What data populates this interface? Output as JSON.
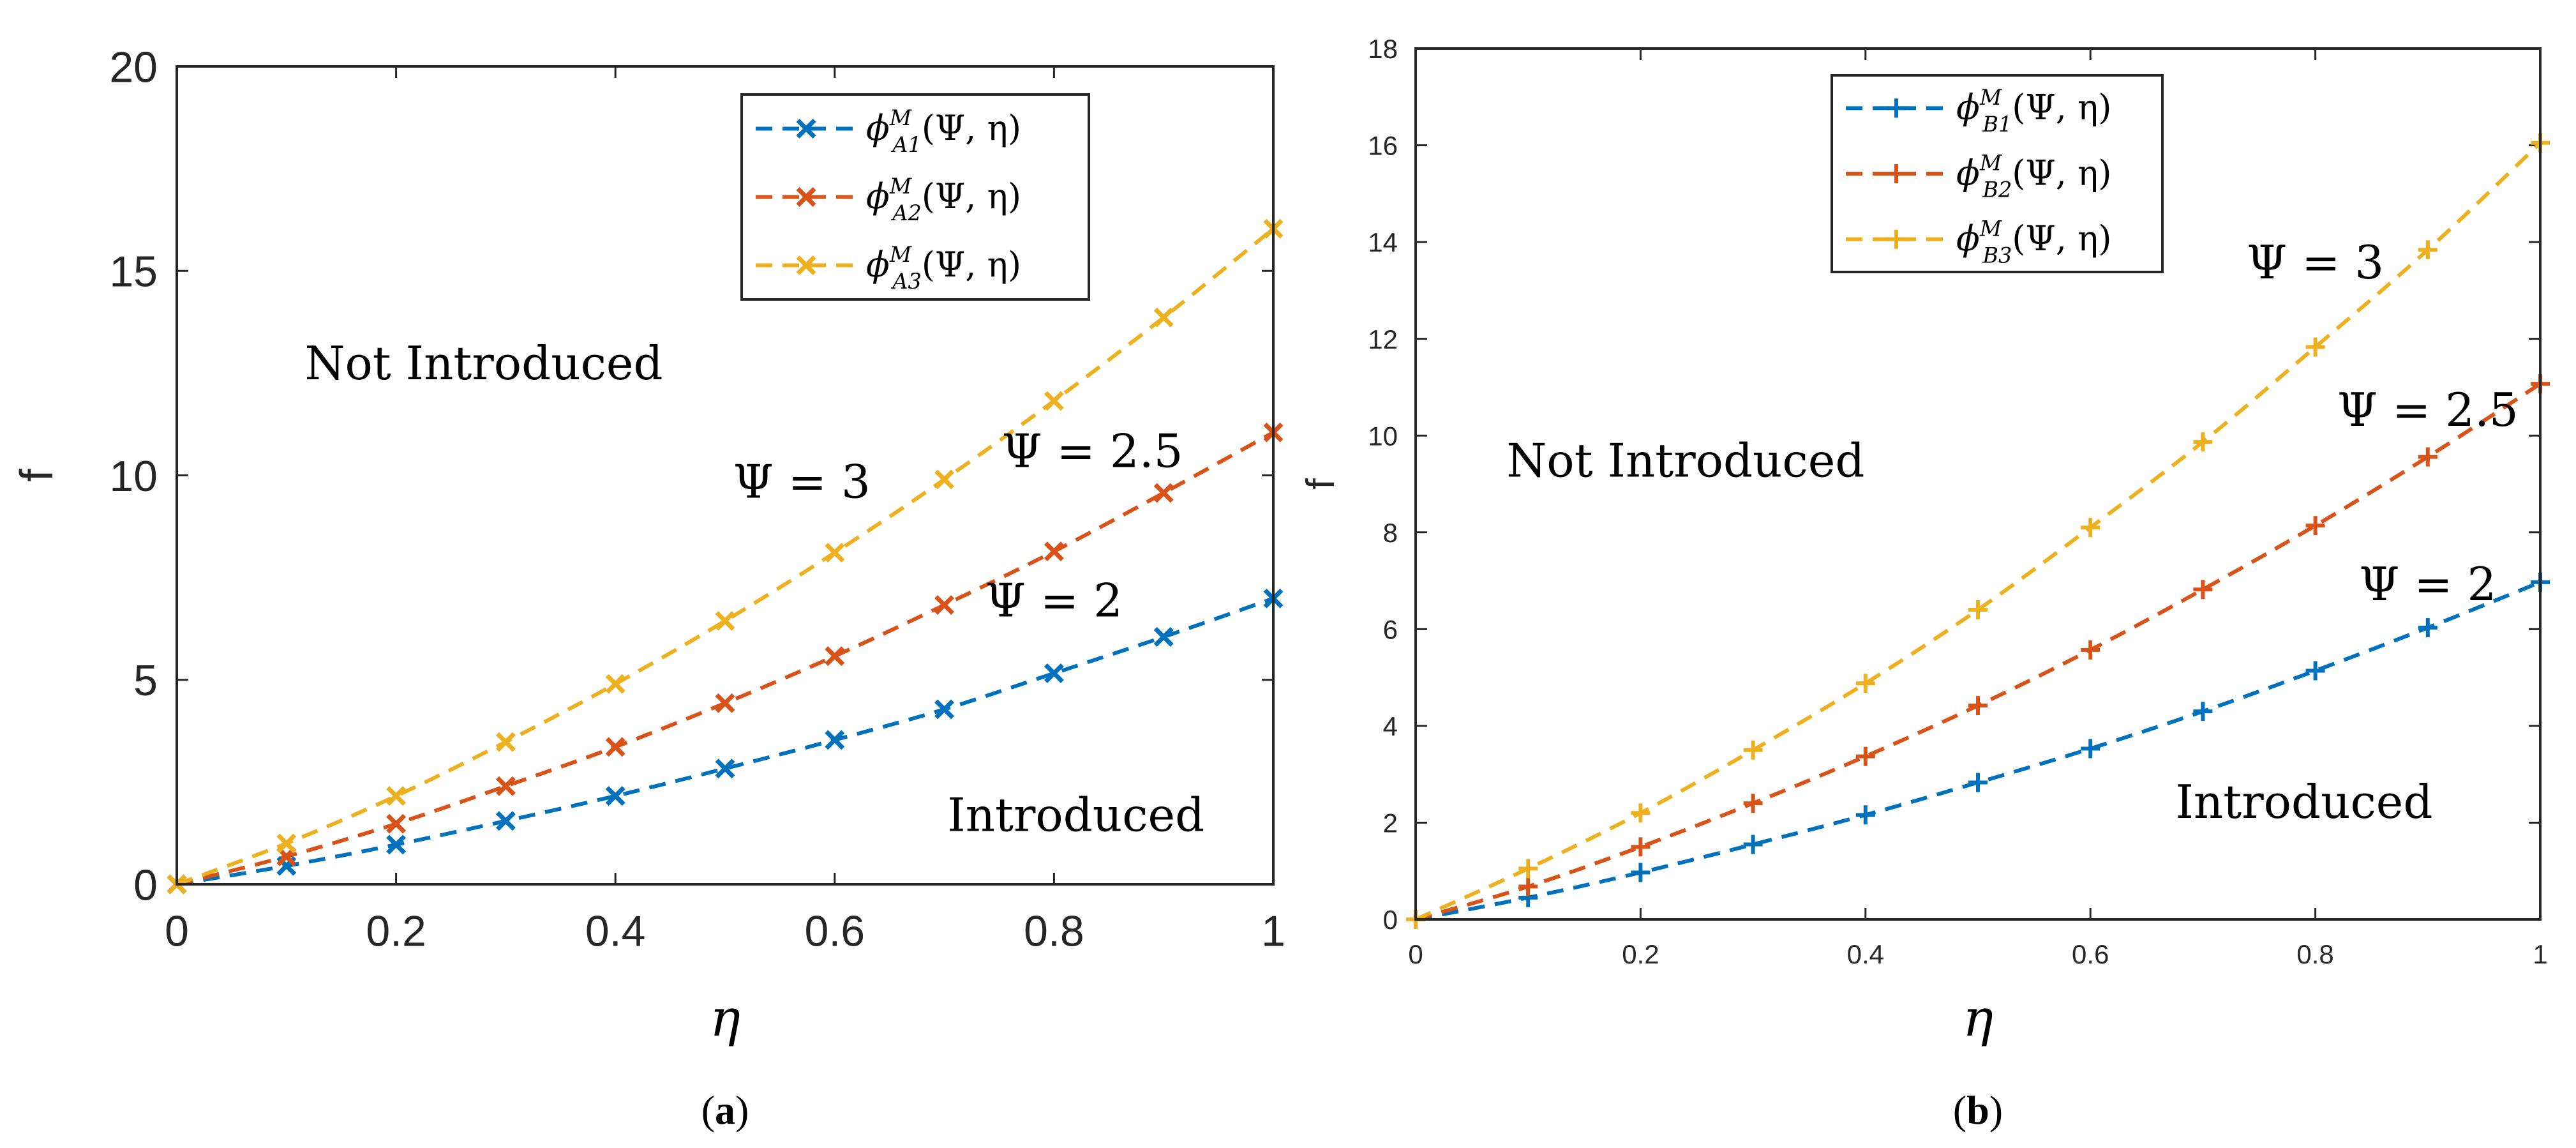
{
  "colors": {
    "blue": "#0072BD",
    "orange": "#D95319",
    "yellow": "#EDB120"
  },
  "chart_data": [
    {
      "type": "line",
      "panel_label": "a",
      "xlabel": "η",
      "ylabel": "f",
      "xlim": [
        0,
        1
      ],
      "ylim": [
        0,
        20
      ],
      "xticks": [
        0,
        0.2,
        0.4,
        0.6,
        0.8,
        1
      ],
      "yticks": [
        0,
        5,
        10,
        15,
        20
      ],
      "xtick_labels": [
        "0",
        "0.2",
        "0.4",
        "0.6",
        "0.8",
        "1"
      ],
      "ytick_labels": [
        "0",
        "5",
        "10",
        "15",
        "20"
      ],
      "marker": "x",
      "x": [
        0,
        0.1,
        0.2,
        0.3,
        0.4,
        0.5,
        0.6,
        0.7,
        0.8,
        0.9,
        1.0
      ],
      "series": [
        {
          "name": "φ_A1^M(Ψ,η)",
          "base": "ϕ",
          "sup": "M",
          "sub": "A1",
          "args": "(Ψ, η)",
          "color": "#0072BD",
          "values": [
            0,
            0.45,
            0.97,
            1.55,
            2.16,
            2.83,
            3.53,
            4.28,
            5.16,
            6.05,
            6.99
          ]
        },
        {
          "name": "φ_A2^M(Ψ,η)",
          "base": "ϕ",
          "sup": "M",
          "sub": "A2",
          "args": "(Ψ, η)",
          "color": "#D95319",
          "values": [
            0,
            0.68,
            1.48,
            2.4,
            3.36,
            4.43,
            5.58,
            6.83,
            8.14,
            9.57,
            11.05
          ]
        },
        {
          "name": "φ_A3^M(Ψ,η)",
          "base": "ϕ",
          "sup": "M",
          "sub": "A3",
          "args": "(Ψ, η)",
          "color": "#EDB120",
          "values": [
            0,
            1.0,
            2.16,
            3.48,
            4.9,
            6.44,
            8.11,
            9.9,
            11.82,
            13.86,
            16.03
          ]
        }
      ],
      "annotations": [
        {
          "text": "Not Introduced",
          "x": 0.28,
          "y": 12.35
        },
        {
          "text": "Introduced",
          "x": 0.82,
          "y": 1.3
        },
        {
          "text": "Ψ = 3",
          "x": 0.57,
          "y": 9.45
        },
        {
          "text": "Ψ = 2.5",
          "x": 0.835,
          "y": 10.2
        },
        {
          "text": "Ψ = 2",
          "x": 0.8,
          "y": 6.55
        }
      ],
      "legend_position": "top-right"
    },
    {
      "type": "line",
      "panel_label": "b",
      "xlabel": "η",
      "ylabel": "f",
      "xlim": [
        0,
        1
      ],
      "ylim": [
        0,
        18
      ],
      "xticks": [
        0,
        0.2,
        0.4,
        0.6,
        0.8,
        1
      ],
      "yticks": [
        0,
        2,
        4,
        6,
        8,
        10,
        12,
        14,
        16,
        18
      ],
      "xtick_labels": [
        "0",
        "0.2",
        "0.4",
        "0.6",
        "0.8",
        "1"
      ],
      "ytick_labels": [
        "0",
        "2",
        "4",
        "6",
        "8",
        "10",
        "12",
        "14",
        "16",
        "18"
      ],
      "marker": "+",
      "x": [
        0,
        0.1,
        0.2,
        0.3,
        0.4,
        0.5,
        0.6,
        0.7,
        0.8,
        0.9,
        1.0
      ],
      "series": [
        {
          "name": "φ_B1^M(Ψ,η)",
          "base": "ϕ",
          "sup": "M",
          "sub": "B1",
          "args": "(Ψ, η)",
          "color": "#0072BD",
          "values": [
            0,
            0.45,
            0.97,
            1.55,
            2.16,
            2.83,
            3.53,
            4.3,
            5.14,
            6.03,
            6.97
          ]
        },
        {
          "name": "φ_B2^M(Ψ,η)",
          "base": "ϕ",
          "sup": "M",
          "sub": "B2",
          "args": "(Ψ, η)",
          "color": "#D95319",
          "values": [
            0,
            0.68,
            1.5,
            2.4,
            3.37,
            4.42,
            5.57,
            6.82,
            8.14,
            9.56,
            11.07
          ]
        },
        {
          "name": "φ_B3^M(Ψ,η)",
          "base": "ϕ",
          "sup": "M",
          "sub": "B3",
          "args": "(Ψ, η)",
          "color": "#EDB120",
          "values": [
            0,
            1.05,
            2.2,
            3.5,
            4.88,
            6.4,
            8.1,
            9.87,
            11.83,
            13.84,
            16.05
          ]
        }
      ],
      "annotations": [
        {
          "text": "Not Introduced",
          "x": 0.24,
          "y": 9.15
        },
        {
          "text": "Introduced",
          "x": 0.79,
          "y": 2.1
        },
        {
          "text": "Ψ = 3",
          "x": 0.8,
          "y": 13.25
        },
        {
          "text": "Ψ = 2.5",
          "x": 0.9,
          "y": 10.2
        },
        {
          "text": "Ψ = 2",
          "x": 0.9,
          "y": 6.6
        }
      ],
      "legend_position": "top-left"
    }
  ]
}
